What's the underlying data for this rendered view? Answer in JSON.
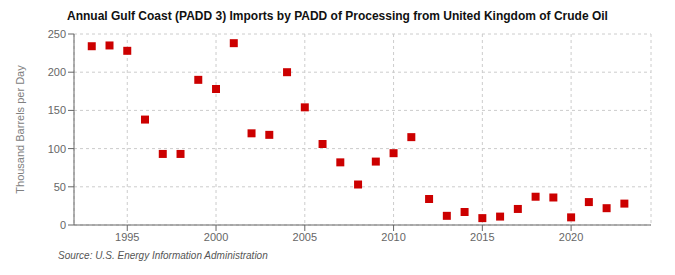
{
  "chart_data": {
    "type": "scatter",
    "title": "Annual Gulf Coast (PADD 3) Imports by PADD of Processing from United Kingdom of Crude Oil",
    "ylabel": "Thousand Barrels per Day",
    "annotation": "Source: U.S. Energy Information Administration",
    "color": "#cc0000",
    "marker": "square",
    "x": [
      1993,
      1994,
      1995,
      1996,
      1997,
      1998,
      1999,
      2000,
      2001,
      2002,
      2003,
      2004,
      2005,
      2006,
      2007,
      2008,
      2009,
      2010,
      2011,
      2012,
      2013,
      2014,
      2015,
      2016,
      2017,
      2018,
      2019,
      2020,
      2021,
      2022,
      2023
    ],
    "values": [
      234,
      235,
      228,
      138,
      93,
      93,
      190,
      178,
      238,
      120,
      118,
      200,
      154,
      106,
      82,
      53,
      83,
      94,
      115,
      34,
      12,
      17,
      9,
      11,
      21,
      37,
      36,
      10,
      30,
      22,
      28
    ],
    "xlim": [
      1992.0,
      2024.5
    ],
    "xticks": [
      1995,
      2000,
      2005,
      2010,
      2015,
      2020
    ],
    "ylim": [
      0,
      250
    ],
    "yticks": [
      0,
      50,
      100,
      150,
      200,
      250
    ],
    "grid": true
  }
}
